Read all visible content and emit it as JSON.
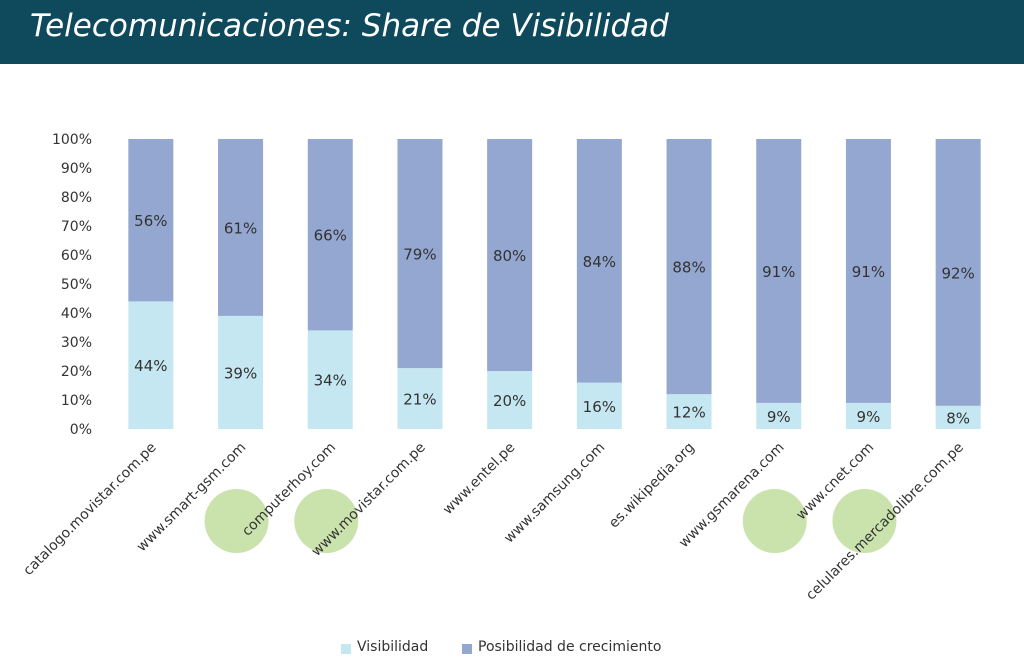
{
  "page": {
    "title": "Telecomunicaciones: Share de Visibilidad"
  },
  "colors": {
    "header": "#0e4a5c",
    "visibilidad": "#c5e7f2",
    "crecimiento": "#94a7d0",
    "highlight": "#c4e0a4"
  },
  "chart_data": {
    "type": "bar",
    "stacked": "percent",
    "categories": [
      "catalogo.movistar.com.pe",
      "www.smart-gsm.com",
      "computerhoy.com",
      "www.movistar.com.pe",
      "www.entel.pe",
      "www.samsung.com",
      "es.wikipedia.org",
      "www.gsmarena.com",
      "www.cnet.com",
      "celulares.mercadolibre.com.pe"
    ],
    "series": [
      {
        "name": "Visibilidad",
        "values": [
          44,
          39,
          34,
          21,
          20,
          16,
          12,
          9,
          9,
          8
        ],
        "labels": [
          "44%",
          "39%",
          "34%",
          "21%",
          "20%",
          "16%",
          "12%",
          "9%",
          "9%",
          "8%"
        ]
      },
      {
        "name": "Posibilidad de crecimiento",
        "values": [
          56,
          61,
          66,
          79,
          80,
          84,
          88,
          91,
          91,
          92
        ],
        "labels": [
          "56%",
          "61%",
          "66%",
          "79%",
          "80%",
          "84%",
          "88%",
          "91%",
          "91%",
          "92%"
        ]
      }
    ],
    "yticks": [
      "0%",
      "10%",
      "20%",
      "30%",
      "40%",
      "50%",
      "60%",
      "70%",
      "80%",
      "90%",
      "100%"
    ],
    "ylim": [
      0,
      100
    ],
    "grid": false,
    "legend": "bottom",
    "highlighted_categories": [
      "www.smart-gsm.com",
      "computerhoy.com",
      "www.gsmarena.com",
      "www.cnet.com"
    ]
  }
}
